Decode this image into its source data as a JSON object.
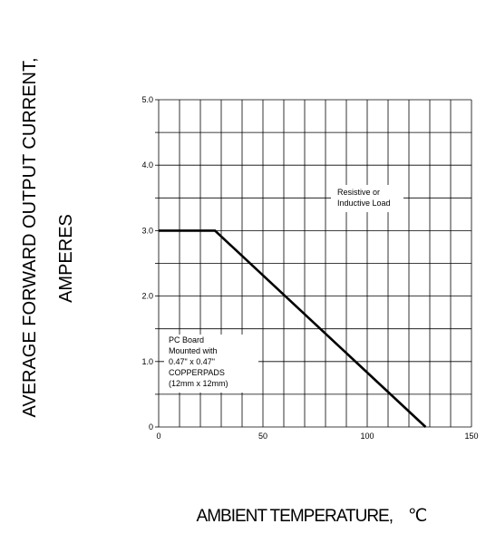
{
  "chart_data": {
    "type": "line",
    "xlabel": "AMBIENT  TEMPERATURE,",
    "xlabel_unit": "℃",
    "ylabel_line1": "AVERAGE FORWARD OUTPUT CURRENT,",
    "ylabel_line2": "AMPERES",
    "xlim": [
      0,
      150
    ],
    "ylim": [
      0,
      5
    ],
    "x_ticks": [
      0,
      50,
      100,
      150
    ],
    "x_tick_labels": [
      "0",
      "50",
      "100",
      "150"
    ],
    "y_ticks": [
      0,
      1,
      2,
      3,
      4,
      5
    ],
    "y_tick_labels": [
      "0",
      "1.0",
      "2.0",
      "3.0",
      "4.0",
      "5.0"
    ],
    "grid": true,
    "series": [
      {
        "x": [
          0,
          27,
          128
        ],
        "y": [
          3.0,
          3.0,
          0
        ]
      }
    ],
    "annotations": {
      "load": [
        "Resistive or",
        "Inductive Load"
      ],
      "board": [
        "PC Board",
        "Mounted with",
        "0.47\" x 0.47\"",
        "COPPERPADS",
        "(12mm x 12mm)"
      ]
    }
  }
}
